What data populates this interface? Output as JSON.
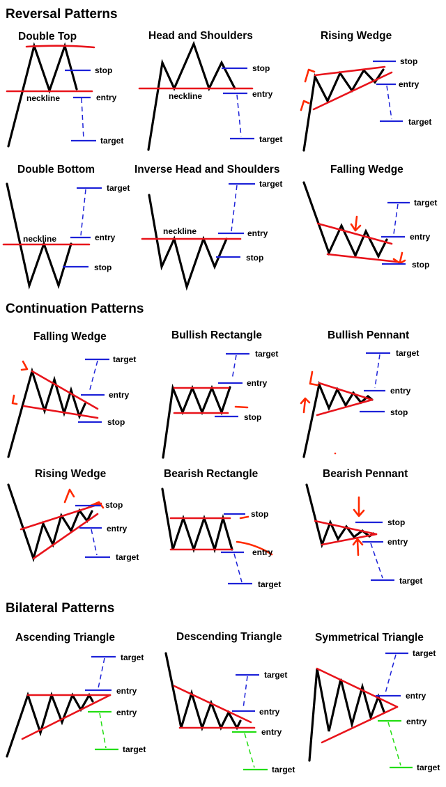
{
  "sections": {
    "reversal": "Reversal Patterns",
    "continuation": "Continuation Patterns",
    "bilateral": "Bilateral Patterns"
  },
  "labels": {
    "stop": "stop",
    "entry": "entry",
    "target": "target",
    "neckline": "neckline"
  },
  "patterns": {
    "double_top": "Double Top",
    "head_and_shoulders": "Head and Shoulders",
    "rising_wedge_rev": "Rising Wedge",
    "double_bottom": "Double Bottom",
    "inverse_head_and_shoulders": "Inverse Head and Shoulders",
    "falling_wedge_rev": "Falling Wedge",
    "falling_wedge_cont": "Falling Wedge",
    "bullish_rectangle": "Bullish Rectangle",
    "bullish_pennant": "Bullish Pennant",
    "rising_wedge_cont": "Rising Wedge",
    "bearish_rectangle": "Bearish Rectangle",
    "bearish_pennant": "Bearish Pennant",
    "ascending_triangle": "Ascending Triangle",
    "descending_triangle": "Descending Triangle",
    "symmetrical_triangle": "Symmetrical Triangle"
  },
  "colors": {
    "price_line": "#000000",
    "trend_line": "#e8141b",
    "bullish_levels": "#1d22d8",
    "bearish_levels": "#22dd11"
  }
}
